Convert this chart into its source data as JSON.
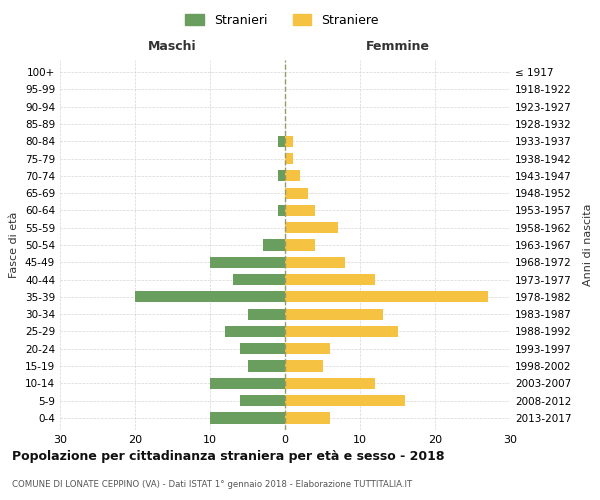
{
  "age_groups": [
    "0-4",
    "5-9",
    "10-14",
    "15-19",
    "20-24",
    "25-29",
    "30-34",
    "35-39",
    "40-44",
    "45-49",
    "50-54",
    "55-59",
    "60-64",
    "65-69",
    "70-74",
    "75-79",
    "80-84",
    "85-89",
    "90-94",
    "95-99",
    "100+"
  ],
  "birth_years": [
    "2013-2017",
    "2008-2012",
    "2003-2007",
    "1998-2002",
    "1993-1997",
    "1988-1992",
    "1983-1987",
    "1978-1982",
    "1973-1977",
    "1968-1972",
    "1963-1967",
    "1958-1962",
    "1953-1957",
    "1948-1952",
    "1943-1947",
    "1938-1942",
    "1933-1937",
    "1928-1932",
    "1923-1927",
    "1918-1922",
    "≤ 1917"
  ],
  "males": [
    10,
    6,
    10,
    5,
    6,
    8,
    5,
    20,
    7,
    10,
    3,
    0,
    1,
    0,
    1,
    0,
    1,
    0,
    0,
    0,
    0
  ],
  "females": [
    6,
    16,
    12,
    5,
    6,
    15,
    13,
    27,
    12,
    8,
    4,
    7,
    4,
    3,
    2,
    1,
    1,
    0,
    0,
    0,
    0
  ],
  "male_color": "#6a9e5e",
  "female_color": "#f5c242",
  "title": "Popolazione per cittadinanza straniera per età e sesso - 2018",
  "subtitle": "COMUNE DI LONATE CEPPINO (VA) - Dati ISTAT 1° gennaio 2018 - Elaborazione TUTTITALIA.IT",
  "xlabel_left": "Maschi",
  "xlabel_right": "Femmine",
  "ylabel": "Fasce di età",
  "ylabel_right": "Anni di nascita",
  "legend_male": "Stranieri",
  "legend_female": "Straniere",
  "xlim": 30,
  "background_color": "#ffffff",
  "grid_color": "#cccccc"
}
